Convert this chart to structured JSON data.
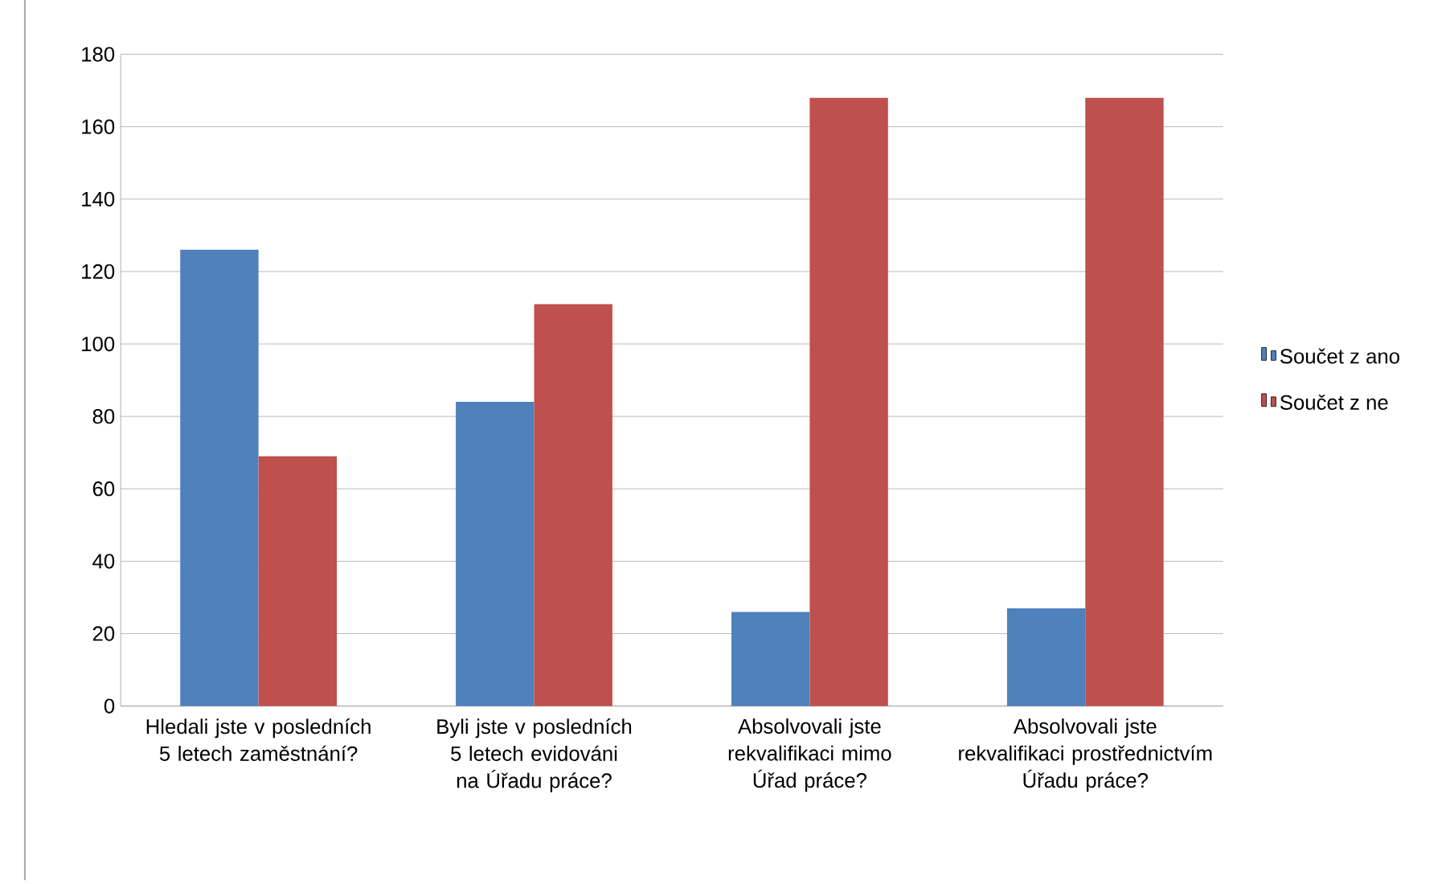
{
  "chart_data": {
    "type": "bar",
    "categories": [
      "Hledali jste v posledních 5 letech zaměstnání?",
      "Byli jste v posledních 5 letech evidováni na Úřadu práce?",
      "Absolvovali jste rekvalifikaci mimo Úřad práce?",
      "Absolvovali jste rekvalifikaci prostřednictvím Úřadu práce?"
    ],
    "series": [
      {
        "name": "Součet z ano",
        "color": "#4f81bd",
        "values": [
          126,
          84,
          26,
          27
        ]
      },
      {
        "name": "Součet z ne",
        "color": "#c0504d",
        "values": [
          69,
          111,
          168,
          168
        ]
      }
    ],
    "ylim": [
      0,
      180
    ],
    "yticks": [
      0,
      20,
      40,
      60,
      80,
      100,
      120,
      140,
      160,
      180
    ],
    "grid": "y",
    "legend": "right"
  }
}
